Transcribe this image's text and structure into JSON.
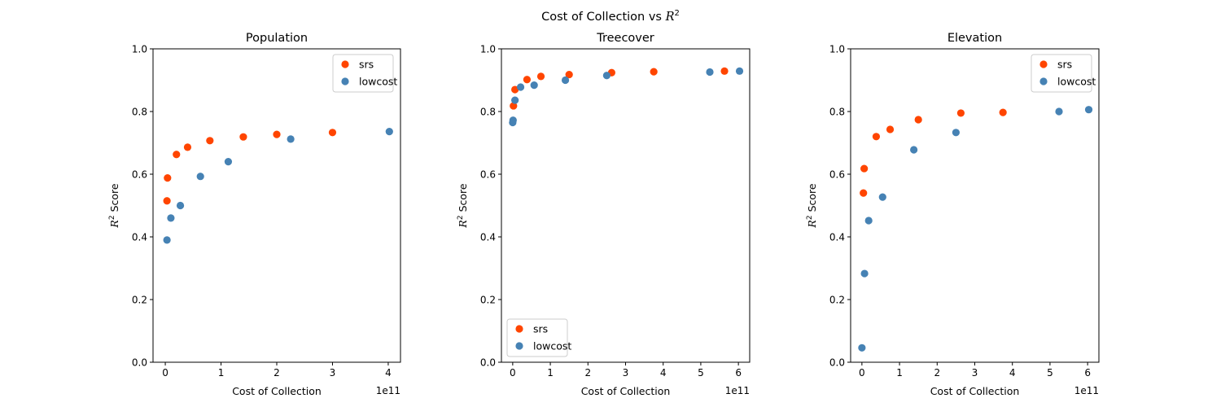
{
  "suptitle_prefix": "Cost of Collection vs ",
  "suptitle_math": "R",
  "suptitle_sup": "2",
  "ylabel_math": "R",
  "ylabel_sup": "2",
  "ylabel_suffix": " Score",
  "exponent_label": "1e11",
  "colors": {
    "srs": "#ff4500",
    "lowcost": "#4682b4"
  },
  "chart_data": [
    {
      "type": "scatter",
      "title": "Population",
      "xlabel": "Cost of Collection",
      "x_scale": 100000000000.0,
      "xlim": [
        -0.22,
        4.22
      ],
      "xticks": [
        0,
        1,
        2,
        3,
        4
      ],
      "ylim": [
        0,
        1
      ],
      "yticks": [
        "0.0",
        "0.2",
        "0.4",
        "0.6",
        "0.8",
        "1.0"
      ],
      "legend": "upper right",
      "series": [
        {
          "name": "srs",
          "color": "#ff4500",
          "x": [
            0.03,
            0.04,
            0.2,
            0.4,
            0.8,
            1.4,
            2.0,
            3.0
          ],
          "y": [
            0.515,
            0.588,
            0.663,
            0.686,
            0.707,
            0.719,
            0.727,
            0.733
          ]
        },
        {
          "name": "lowcost",
          "color": "#4682b4",
          "x": [
            0.03,
            0.1,
            0.27,
            0.63,
            1.13,
            2.25,
            4.02
          ],
          "y": [
            0.39,
            0.46,
            0.5,
            0.593,
            0.64,
            0.712,
            0.736
          ]
        }
      ]
    },
    {
      "type": "scatter",
      "title": "Treecover",
      "xlabel": "Cost of Collection",
      "x_scale": 100000000000.0,
      "xlim": [
        -0.3,
        6.3
      ],
      "xticks": [
        0,
        1,
        2,
        3,
        4,
        5,
        6
      ],
      "ylim": [
        0,
        1
      ],
      "yticks": [
        "0.0",
        "0.2",
        "0.4",
        "0.6",
        "0.8",
        "1.0"
      ],
      "legend": "lower left",
      "series": [
        {
          "name": "srs",
          "color": "#ff4500",
          "x": [
            0.02,
            0.06,
            0.38,
            0.75,
            1.5,
            2.63,
            3.75,
            5.63
          ],
          "y": [
            0.818,
            0.87,
            0.902,
            0.912,
            0.918,
            0.924,
            0.927,
            0.929
          ]
        },
        {
          "name": "lowcost",
          "color": "#4682b4",
          "x": [
            0.0,
            0.01,
            0.06,
            0.21,
            0.57,
            1.4,
            2.5,
            5.24,
            6.03
          ],
          "y": [
            0.765,
            0.772,
            0.836,
            0.878,
            0.884,
            0.9,
            0.915,
            0.926,
            0.929
          ]
        }
      ]
    },
    {
      "type": "scatter",
      "title": "Elevation",
      "xlabel": "Cost of Collection",
      "x_scale": 100000000000.0,
      "xlim": [
        -0.3,
        6.3
      ],
      "xticks": [
        0,
        1,
        2,
        3,
        4,
        5,
        6
      ],
      "ylim": [
        0,
        1
      ],
      "yticks": [
        "0.0",
        "0.2",
        "0.4",
        "0.6",
        "0.8",
        "1.0"
      ],
      "legend": "upper right",
      "series": [
        {
          "name": "srs",
          "color": "#ff4500",
          "x": [
            0.04,
            0.06,
            0.38,
            0.75,
            1.5,
            2.63,
            3.75
          ],
          "y": [
            0.54,
            0.618,
            0.72,
            0.743,
            0.774,
            0.795,
            0.797
          ]
        },
        {
          "name": "lowcost",
          "color": "#4682b4",
          "x": [
            0.0,
            0.07,
            0.18,
            0.55,
            1.38,
            2.5,
            5.24,
            6.03
          ],
          "y": [
            0.046,
            0.283,
            0.452,
            0.527,
            0.678,
            0.733,
            0.8,
            0.806
          ]
        }
      ]
    }
  ]
}
